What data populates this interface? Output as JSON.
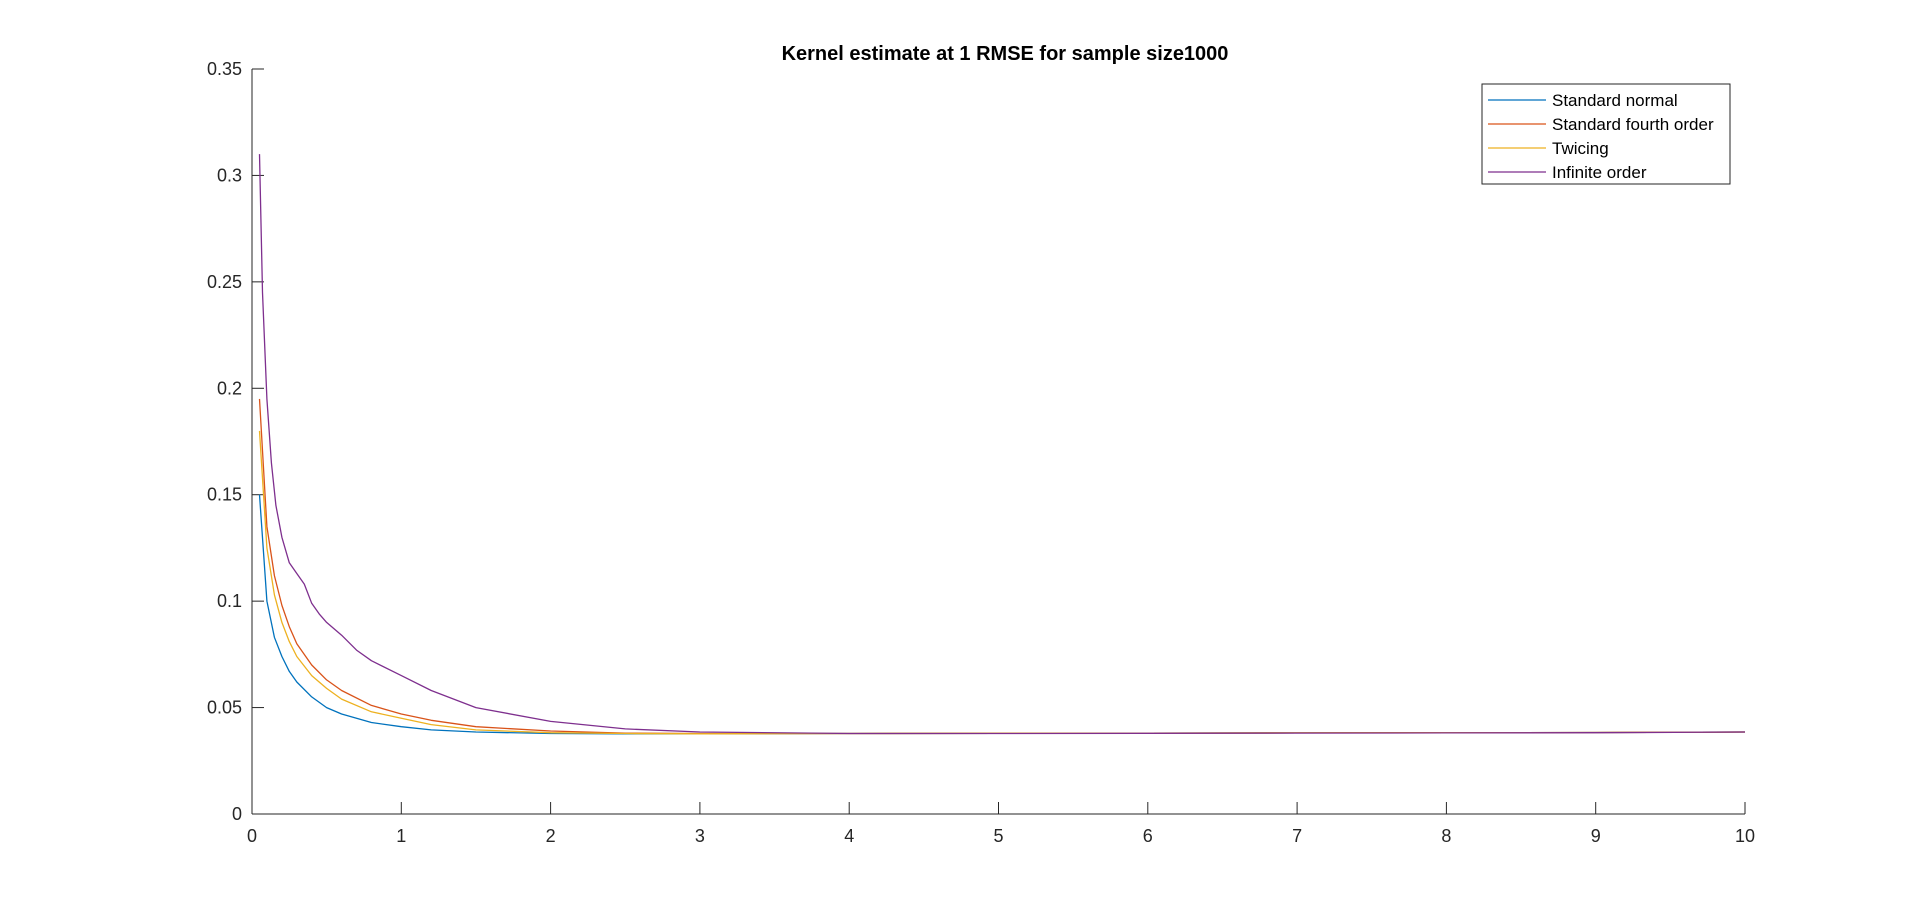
{
  "chart_data": {
    "type": "line",
    "title": "Kernel estimate at 1 RMSE for sample size1000",
    "xlabel": "",
    "ylabel": "",
    "xlim": [
      0,
      10
    ],
    "ylim": [
      0,
      0.35
    ],
    "x_ticks": [
      0,
      1,
      2,
      3,
      4,
      5,
      6,
      7,
      8,
      9,
      10
    ],
    "y_ticks": [
      0,
      0.05,
      0.1,
      0.15,
      0.2,
      0.25,
      0.3,
      0.35
    ],
    "x_tick_labels": [
      "0",
      "1",
      "2",
      "3",
      "4",
      "5",
      "6",
      "7",
      "8",
      "9",
      "10"
    ],
    "y_tick_labels": [
      "0",
      "0.05",
      "0.1",
      "0.15",
      "0.2",
      "0.25",
      "0.3",
      "0.35"
    ],
    "grid": false,
    "legend_position": "top-right",
    "series": [
      {
        "name": "Standard normal",
        "color": "#0072bd",
        "x": [
          0.05,
          0.1,
          0.15,
          0.2,
          0.25,
          0.3,
          0.4,
          0.5,
          0.6,
          0.8,
          1.0,
          1.2,
          1.5,
          2.0,
          2.5,
          3.0,
          4.0,
          5.0,
          6.0,
          7.0,
          8.0,
          9.0,
          10.0
        ],
        "y": [
          0.15,
          0.1,
          0.083,
          0.074,
          0.067,
          0.062,
          0.055,
          0.05,
          0.047,
          0.043,
          0.041,
          0.0395,
          0.0385,
          0.0378,
          0.0377,
          0.0377,
          0.0378,
          0.0379,
          0.038,
          0.0381,
          0.0382,
          0.0383,
          0.0385
        ]
      },
      {
        "name": "Standard fourth order",
        "color": "#d95319",
        "x": [
          0.05,
          0.1,
          0.15,
          0.2,
          0.25,
          0.3,
          0.4,
          0.5,
          0.6,
          0.8,
          1.0,
          1.2,
          1.5,
          2.0,
          2.5,
          3.0,
          4.0,
          5.0,
          6.0,
          7.0,
          8.0,
          9.0,
          10.0
        ],
        "y": [
          0.195,
          0.135,
          0.112,
          0.098,
          0.088,
          0.08,
          0.07,
          0.063,
          0.058,
          0.051,
          0.047,
          0.044,
          0.041,
          0.039,
          0.038,
          0.0378,
          0.0378,
          0.0379,
          0.038,
          0.0381,
          0.0382,
          0.0383,
          0.0385
        ]
      },
      {
        "name": "Twicing",
        "color": "#edb120",
        "x": [
          0.05,
          0.1,
          0.15,
          0.2,
          0.25,
          0.3,
          0.4,
          0.5,
          0.6,
          0.8,
          1.0,
          1.2,
          1.5,
          2.0,
          2.5,
          3.0,
          4.0,
          5.0,
          6.0,
          7.0,
          8.0,
          9.0,
          10.0
        ],
        "y": [
          0.18,
          0.125,
          0.103,
          0.09,
          0.081,
          0.074,
          0.065,
          0.059,
          0.054,
          0.048,
          0.045,
          0.042,
          0.0395,
          0.0382,
          0.0378,
          0.0377,
          0.0378,
          0.0379,
          0.038,
          0.0381,
          0.0382,
          0.0383,
          0.0385
        ]
      },
      {
        "name": "Infinite order",
        "color": "#7e2f8e",
        "x": [
          0.05,
          0.07,
          0.1,
          0.13,
          0.16,
          0.2,
          0.25,
          0.3,
          0.35,
          0.4,
          0.45,
          0.5,
          0.6,
          0.7,
          0.8,
          1.0,
          1.2,
          1.5,
          2.0,
          2.5,
          3.0,
          4.0,
          5.0,
          6.0,
          7.0,
          8.0,
          9.0,
          10.0
        ],
        "y": [
          0.31,
          0.245,
          0.195,
          0.165,
          0.145,
          0.13,
          0.118,
          0.113,
          0.108,
          0.099,
          0.094,
          0.09,
          0.084,
          0.077,
          0.072,
          0.065,
          0.058,
          0.05,
          0.0435,
          0.04,
          0.0385,
          0.0378,
          0.0378,
          0.0379,
          0.038,
          0.0381,
          0.0382,
          0.0385
        ]
      }
    ]
  }
}
